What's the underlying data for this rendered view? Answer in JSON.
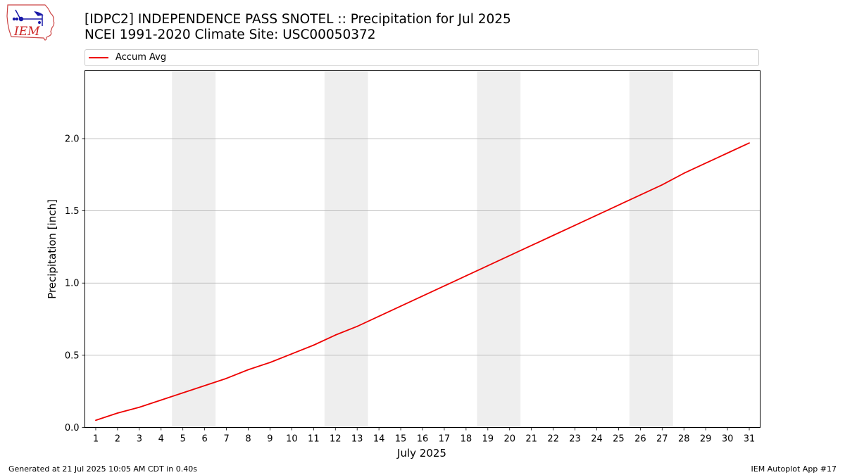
{
  "header": {
    "logo_text": "IEM",
    "title_line1": "[IDPC2] INDEPENDENCE PASS SNOTEL :: Precipitation for Jul 2025",
    "title_line2": "NCEI 1991-2020 Climate Site: USC00050372"
  },
  "footer": {
    "left": "Generated at 21 Jul 2025 10:05 AM CDT in 0.40s",
    "right": "IEM Autoplot App #17"
  },
  "chart_data": {
    "type": "line",
    "xlabel": "July 2025",
    "ylabel": "Precipitation [inch]",
    "x": [
      1,
      2,
      3,
      4,
      5,
      6,
      7,
      8,
      9,
      10,
      11,
      12,
      13,
      14,
      15,
      16,
      17,
      18,
      19,
      20,
      21,
      22,
      23,
      24,
      25,
      26,
      27,
      28,
      29,
      30,
      31
    ],
    "xticks": [
      "1",
      "2",
      "3",
      "4",
      "5",
      "6",
      "7",
      "8",
      "9",
      "10",
      "11",
      "12",
      "13",
      "14",
      "15",
      "16",
      "17",
      "18",
      "19",
      "20",
      "21",
      "22",
      "23",
      "24",
      "25",
      "26",
      "27",
      "28",
      "29",
      "30",
      "31"
    ],
    "ylim": [
      0,
      2.47
    ],
    "yticks": [
      "0.0",
      "0.5",
      "1.0",
      "1.5",
      "2.0"
    ],
    "grid": "horizontal",
    "legend_position": "top",
    "weekend_shading": [
      [
        5,
        6
      ],
      [
        12,
        13
      ],
      [
        19,
        20
      ],
      [
        26,
        27
      ]
    ],
    "shading_color": "#eeeeee",
    "series": [
      {
        "name": "Accum Avg",
        "color": "#ee0000",
        "values": [
          0.05,
          0.1,
          0.14,
          0.19,
          0.24,
          0.29,
          0.34,
          0.4,
          0.45,
          0.51,
          0.57,
          0.64,
          0.7,
          0.77,
          0.84,
          0.91,
          0.98,
          1.05,
          1.12,
          1.19,
          1.26,
          1.33,
          1.4,
          1.47,
          1.54,
          1.61,
          1.68,
          1.76,
          1.83,
          1.9,
          1.97
        ]
      }
    ]
  }
}
